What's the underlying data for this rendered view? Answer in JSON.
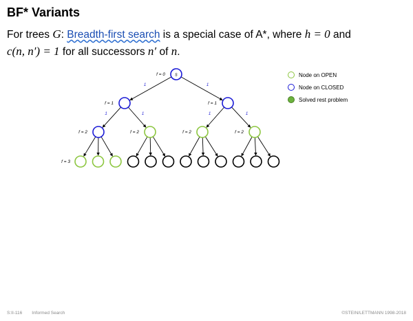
{
  "slide": {
    "title": "BF* Variants",
    "intro": {
      "t1": "For trees ",
      "G": "G",
      "t2": ": ",
      "link": "Breadth-first search",
      "t3": " is a special case of A*, where ",
      "h_eq": "h = 0",
      "t4": " and",
      "c_eq": "c(n, n′) = 1",
      "t5": " for all successors ",
      "n_prime": "n′",
      "t6": " of ",
      "n": "n",
      "t7": "."
    }
  },
  "tree": {
    "root_label": "s",
    "edge_cost_label": "1",
    "levels": [
      {
        "f_label": "f = 0",
        "nodes": [
          {
            "state": "closed"
          }
        ]
      },
      {
        "f_label": "f = 1",
        "nodes": [
          {
            "state": "closed"
          },
          {
            "state": "closed"
          }
        ]
      },
      {
        "f_label": "f = 2",
        "nodes": [
          {
            "state": "closed"
          },
          {
            "state": "open"
          },
          {
            "state": "open"
          },
          {
            "state": "open"
          }
        ]
      },
      {
        "f_label": "f = 3",
        "nodes": [
          {
            "state": "open"
          },
          {
            "state": "open"
          },
          {
            "state": "open"
          },
          {
            "state": "unexplored"
          },
          {
            "state": "unexplored"
          },
          {
            "state": "unexplored"
          },
          {
            "state": "unexplored"
          },
          {
            "state": "unexplored"
          },
          {
            "state": "unexplored"
          },
          {
            "state": "unexplored"
          },
          {
            "state": "unexplored"
          },
          {
            "state": "unexplored"
          }
        ]
      }
    ],
    "colors": {
      "open": "#8cc63f",
      "closed": "#1a1ad6",
      "unexplored": "#000000",
      "solved_fill": "#6cb33e",
      "solved_stroke": "#4a7f25",
      "edge_label": "#2a2ad6"
    }
  },
  "legend": {
    "items": [
      {
        "label": "Node on OPEN",
        "kind": "open"
      },
      {
        "label": "Node on CLOSED",
        "kind": "closed"
      },
      {
        "label": "Solved rest problem",
        "kind": "solved"
      }
    ]
  },
  "footer": {
    "slide_number": "S:II-116",
    "topic": "Informed Search",
    "copyright": "©STEIN/LETTMANN 1998-2018"
  }
}
